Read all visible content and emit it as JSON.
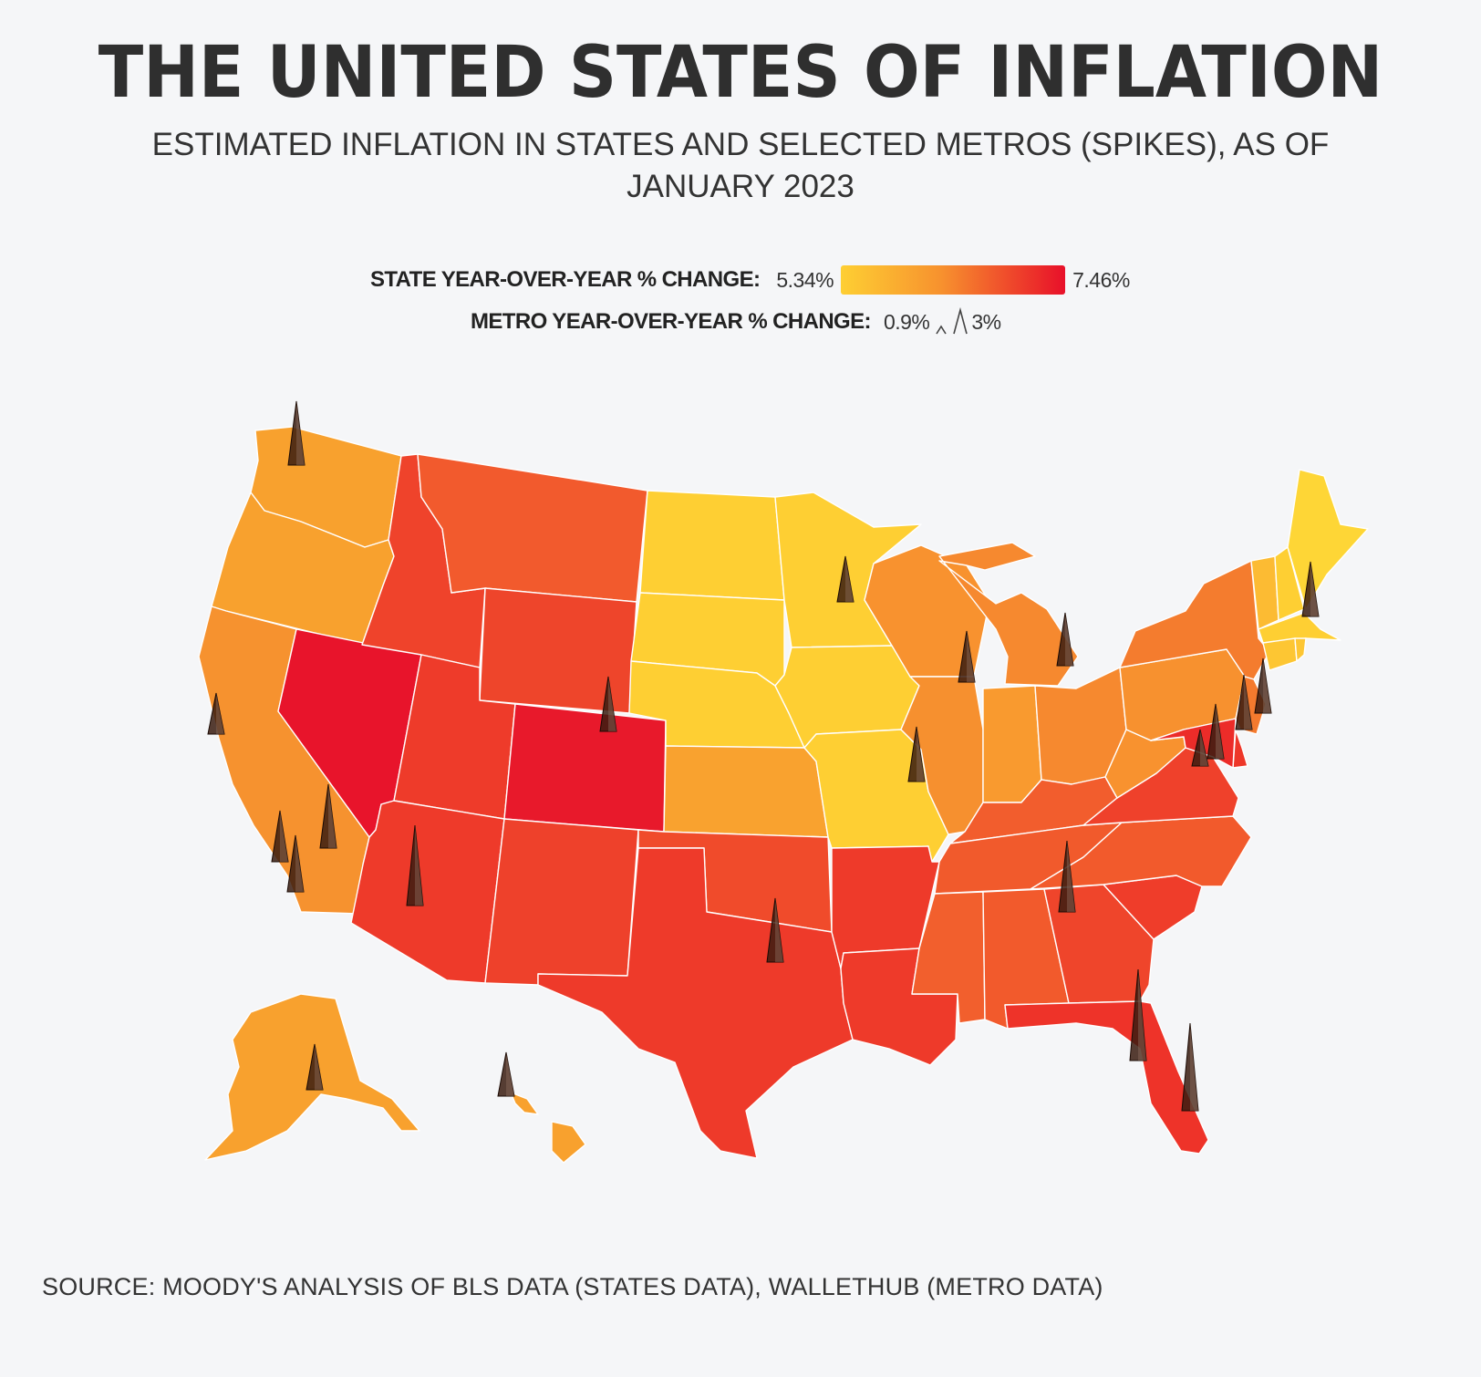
{
  "title": "THE UNITED STATES OF INFLATION",
  "subtitle": "ESTIMATED INFLATION IN STATES AND SELECTED METROS (SPIKES), AS OF JANUARY 2023",
  "legend": {
    "state_label": "STATE YEAR-OVER-YEAR % CHANGE:",
    "state_min": "5.34%",
    "state_max": "7.46%",
    "metro_label": "METRO YEAR-OVER-YEAR % CHANGE:",
    "metro_min": "0.9%",
    "metro_max": "3%"
  },
  "source": "SOURCE: MOODY'S ANALYSIS OF BLS DATA (STATES DATA), WALLETHUB (METRO DATA)",
  "colors": {
    "background": "#f5f6f8",
    "low": "#fecf33",
    "high": "#e8102a",
    "spike": "#3a1c10",
    "state_border": "#ffffff"
  }
}
